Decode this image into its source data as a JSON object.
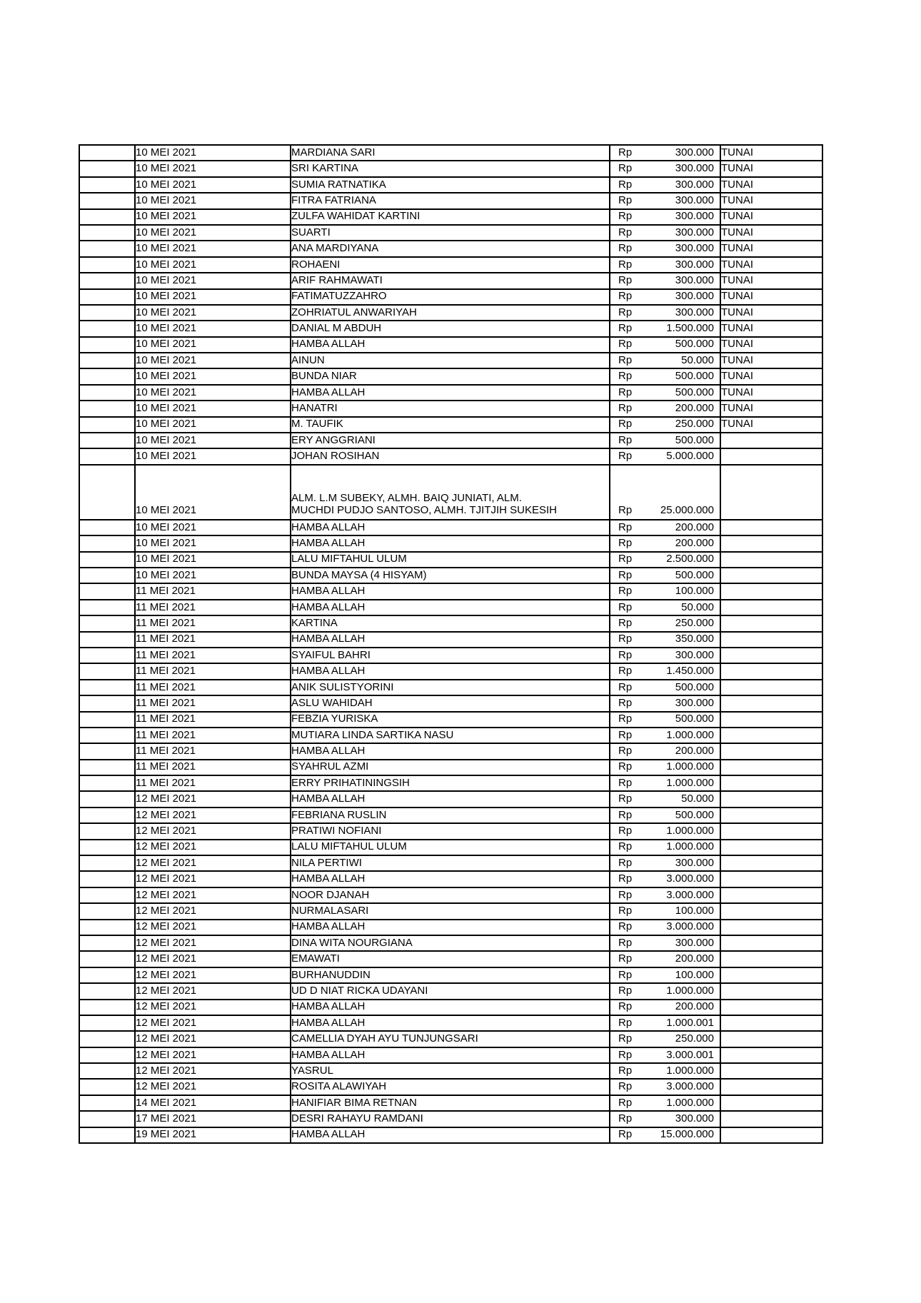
{
  "page": {
    "background_color": "#ffffff",
    "text_color": "#000000",
    "border_color": "#000000"
  },
  "table": {
    "columns": [
      "blank",
      "date",
      "donor_name",
      "amount",
      "payment_method"
    ],
    "currency_label": "Rp",
    "rows": [
      {
        "date": "10 MEI 2021",
        "name": "MARDIANA SARI",
        "amount": "300.000",
        "method": "TUNAI"
      },
      {
        "date": "10 MEI 2021",
        "name": "SRI KARTINA",
        "amount": "300.000",
        "method": "TUNAI"
      },
      {
        "date": "10 MEI 2021",
        "name": "SUMIA RATNATIKA",
        "amount": "300.000",
        "method": "TUNAI"
      },
      {
        "date": "10 MEI 2021",
        "name": "FITRA FATRIANA",
        "amount": "300.000",
        "method": "TUNAI"
      },
      {
        "date": "10 MEI 2021",
        "name": "ZULFA WAHIDAT KARTINI",
        "amount": "300.000",
        "method": "TUNAI"
      },
      {
        "date": "10 MEI 2021",
        "name": "SUARTI",
        "amount": "300.000",
        "method": "TUNAI"
      },
      {
        "date": "10 MEI 2021",
        "name": "ANA MARDIYANA",
        "amount": "300.000",
        "method": "TUNAI"
      },
      {
        "date": "10 MEI 2021",
        "name": "ROHAENI",
        "amount": "300.000",
        "method": "TUNAI"
      },
      {
        "date": "10 MEI 2021",
        "name": "ARIF RAHMAWATI",
        "amount": "300.000",
        "method": "TUNAI"
      },
      {
        "date": "10 MEI 2021",
        "name": "FATIMATUZZAHRO",
        "amount": "300.000",
        "method": "TUNAI"
      },
      {
        "date": "10 MEI 2021",
        "name": "ZOHRIATUL ANWARIYAH",
        "amount": "300.000",
        "method": "TUNAI"
      },
      {
        "date": "10 MEI 2021",
        "name": "DANIAL M ABDUH",
        "amount": "1.500.000",
        "method": "TUNAI"
      },
      {
        "date": "10 MEI 2021",
        "name": "HAMBA ALLAH",
        "amount": "500.000",
        "method": "TUNAI"
      },
      {
        "date": "10 MEI 2021",
        "name": "AINUN",
        "amount": "50.000",
        "method": "TUNAI"
      },
      {
        "date": "10 MEI 2021",
        "name": "BUNDA NIAR",
        "amount": "500.000",
        "method": "TUNAI"
      },
      {
        "date": "10 MEI 2021",
        "name": "HAMBA ALLAH",
        "amount": "500.000",
        "method": "TUNAI"
      },
      {
        "date": "10 MEI 2021",
        "name": "HANATRI",
        "amount": "200.000",
        "method": "TUNAI"
      },
      {
        "date": "10 MEI 2021",
        "name": "M. TAUFIK",
        "amount": "250.000",
        "method": "TUNAI"
      },
      {
        "date": "10 MEI 2021",
        "name": "ERY ANGGRIANI",
        "amount": "500.000",
        "method": ""
      },
      {
        "date": "10 MEI 2021",
        "name": "JOHAN ROSIHAN",
        "amount": "5.000.000",
        "method": ""
      },
      {
        "date": "10 MEI 2021",
        "name": "ALM. L.M SUBEKY, ALMH. BAIQ JUNIATI, ALM.\nMUCHDI PUDJO SANTOSO, ALMH. TJITJIH SUKESIH",
        "amount": "25.000.000",
        "method": "",
        "tall": true
      },
      {
        "date": "10 MEI 2021",
        "name": "HAMBA ALLAH",
        "amount": "200.000",
        "method": ""
      },
      {
        "date": "10 MEI 2021",
        "name": "HAMBA ALLAH",
        "amount": "200.000",
        "method": ""
      },
      {
        "date": "10 MEI 2021",
        "name": "LALU MIFTAHUL ULUM",
        "amount": "2.500.000",
        "method": ""
      },
      {
        "date": "10 MEI 2021",
        "name": "BUNDA MAYSA (4 HISYAM)",
        "amount": "500.000",
        "method": ""
      },
      {
        "date": "11 MEI 2021",
        "name": "HAMBA ALLAH",
        "amount": "100.000",
        "method": ""
      },
      {
        "date": "11 MEI 2021",
        "name": "HAMBA ALLAH",
        "amount": "50.000",
        "method": ""
      },
      {
        "date": "11 MEI 2021",
        "name": "KARTINA",
        "amount": "250.000",
        "method": ""
      },
      {
        "date": "11 MEI 2021",
        "name": "HAMBA ALLAH",
        "amount": "350.000",
        "method": ""
      },
      {
        "date": "11 MEI 2021",
        "name": "SYAIFUL BAHRI",
        "amount": "300.000",
        "method": ""
      },
      {
        "date": "11 MEI 2021",
        "name": "HAMBA ALLAH",
        "amount": "1.450.000",
        "method": ""
      },
      {
        "date": "11 MEI 2021",
        "name": "ANIK SULISTYORINI",
        "amount": "500.000",
        "method": ""
      },
      {
        "date": "11 MEI 2021",
        "name": "ASLU WAHIDAH",
        "amount": "300.000",
        "method": ""
      },
      {
        "date": "11 MEI 2021",
        "name": "FEBZIA YURISKA",
        "amount": "500.000",
        "method": ""
      },
      {
        "date": "11 MEI 2021",
        "name": "MUTIARA LINDA SARTIKA NASU",
        "amount": "1.000.000",
        "method": ""
      },
      {
        "date": "11 MEI 2021",
        "name": "HAMBA ALLAH",
        "amount": "200.000",
        "method": ""
      },
      {
        "date": "11 MEI 2021",
        "name": "SYAHRUL AZMI",
        "amount": "1.000.000",
        "method": ""
      },
      {
        "date": "11 MEI 2021",
        "name": "ERRY PRIHATININGSIH",
        "amount": "1.000.000",
        "method": ""
      },
      {
        "date": "12 MEI 2021",
        "name": "HAMBA ALLAH",
        "amount": "50.000",
        "method": ""
      },
      {
        "date": "12 MEI 2021",
        "name": "FEBRIANA RUSLIN",
        "amount": "500.000",
        "method": ""
      },
      {
        "date": "12 MEI 2021",
        "name": "PRATIWI NOFIANI",
        "amount": "1.000.000",
        "method": ""
      },
      {
        "date": "12 MEI 2021",
        "name": "LALU MIFTAHUL ULUM",
        "amount": "1.000.000",
        "method": ""
      },
      {
        "date": "12 MEI 2021",
        "name": "NILA PERTIWI",
        "amount": "300.000",
        "method": ""
      },
      {
        "date": "12 MEI 2021",
        "name": "HAMBA ALLAH",
        "amount": "3.000.000",
        "method": ""
      },
      {
        "date": "12 MEI 2021",
        "name": "NOOR DJANAH",
        "amount": "3.000.000",
        "method": ""
      },
      {
        "date": "12 MEI 2021",
        "name": "NURMALASARI",
        "amount": "100.000",
        "method": ""
      },
      {
        "date": "12 MEI 2021",
        "name": "HAMBA ALLAH",
        "amount": "3.000.000",
        "method": ""
      },
      {
        "date": "12 MEI 2021",
        "name": "DINA WITA NOURGIANA",
        "amount": "300.000",
        "method": ""
      },
      {
        "date": "12 MEI 2021",
        "name": "EMAWATI",
        "amount": "200.000",
        "method": ""
      },
      {
        "date": "12 MEI 2021",
        "name": "BURHANUDDIN",
        "amount": "100.000",
        "method": ""
      },
      {
        "date": "12 MEI 2021",
        "name": "UD D NIAT RICKA UDAYANI",
        "amount": "1.000.000",
        "method": ""
      },
      {
        "date": "12 MEI 2021",
        "name": "HAMBA ALLAH",
        "amount": "200.000",
        "method": ""
      },
      {
        "date": "12 MEI 2021",
        "name": "HAMBA ALLAH",
        "amount": "1.000.001",
        "method": ""
      },
      {
        "date": "12 MEI 2021",
        "name": "CAMELLIA DYAH AYU TUNJUNGSARI",
        "amount": "250.000",
        "method": ""
      },
      {
        "date": "12 MEI 2021",
        "name": "HAMBA ALLAH",
        "amount": "3.000.001",
        "method": ""
      },
      {
        "date": "12 MEI 2021",
        "name": "YASRUL",
        "amount": "1.000.000",
        "method": ""
      },
      {
        "date": "12 MEI 2021",
        "name": "ROSITA ALAWIYAH",
        "amount": "3.000.000",
        "method": ""
      },
      {
        "date": "14 MEI 2021",
        "name": "HANIFIAR BIMA RETNAN",
        "amount": "1.000.000",
        "method": ""
      },
      {
        "date": "17 MEI 2021",
        "name": "DESRI RAHAYU RAMDANI",
        "amount": "300.000",
        "method": ""
      },
      {
        "date": "19 MEI 2021",
        "name": "HAMBA ALLAH",
        "amount": "15.000.000",
        "method": ""
      }
    ]
  }
}
